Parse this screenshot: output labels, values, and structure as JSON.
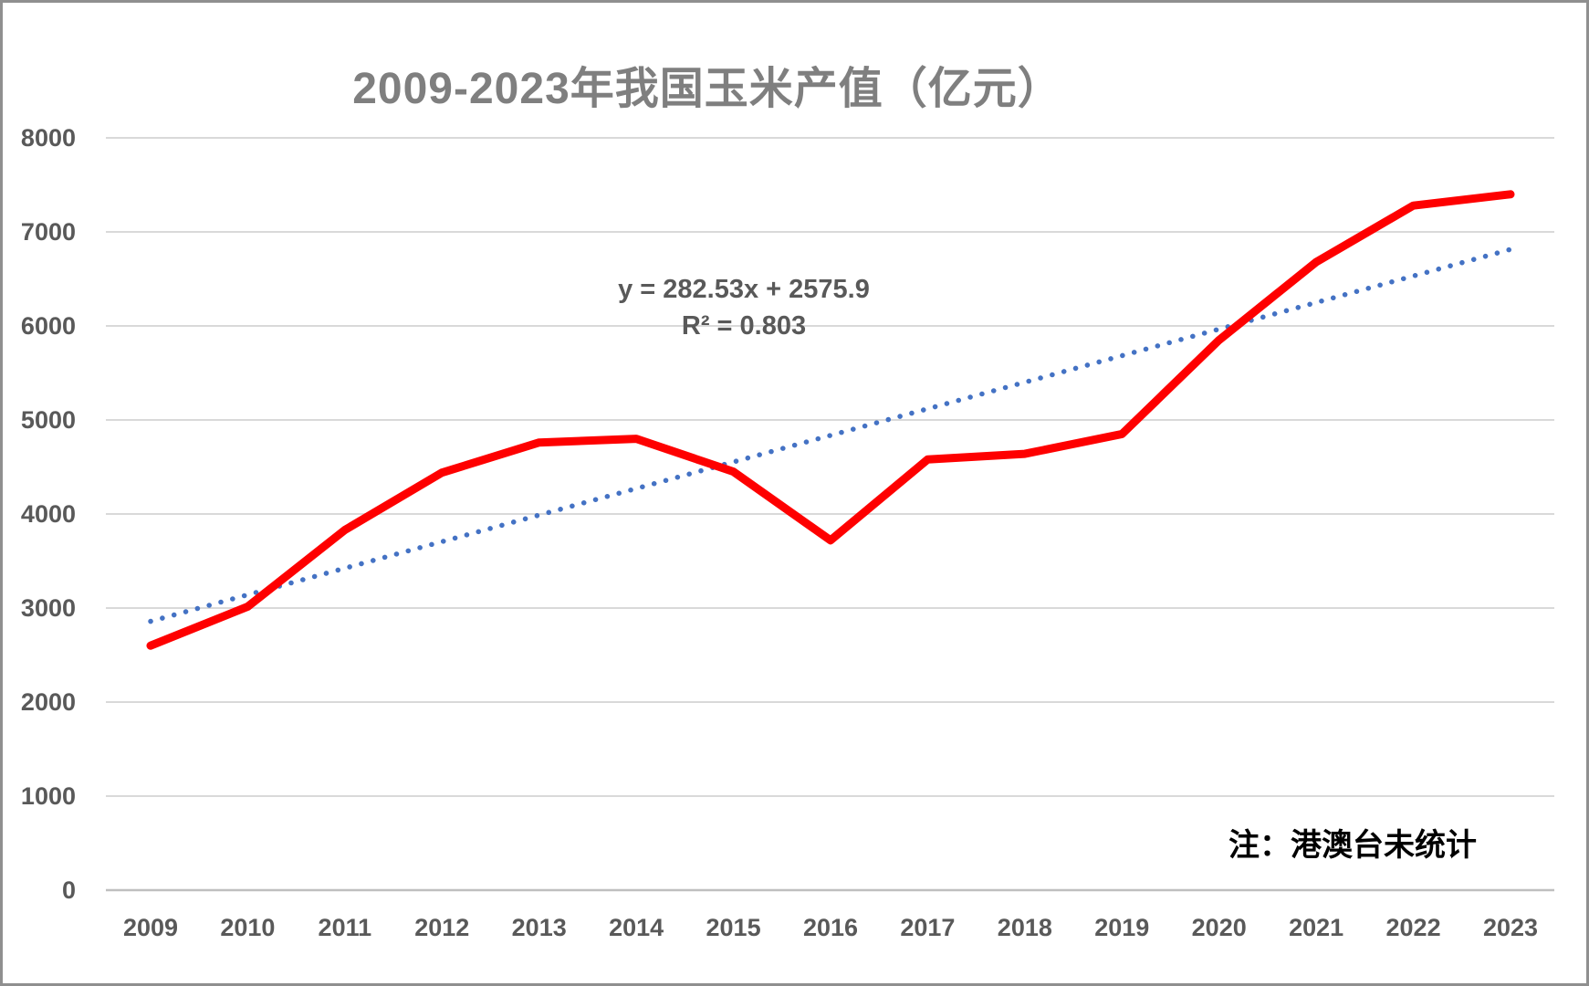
{
  "note": "注：港澳台未统计",
  "chart_data": {
    "type": "line",
    "title": "2009-2023年我国玉米产值（亿元）",
    "categories": [
      "2009",
      "2010",
      "2011",
      "2012",
      "2013",
      "2014",
      "2015",
      "2016",
      "2017",
      "2018",
      "2019",
      "2020",
      "2021",
      "2022",
      "2023"
    ],
    "series": [
      {
        "name": "玉米产值",
        "values": [
          2600,
          3015,
          3830,
          4440,
          4760,
          4800,
          4450,
          3720,
          4580,
          4640,
          4850,
          5850,
          6680,
          7280,
          7400
        ]
      }
    ],
    "trendline": {
      "slope": 282.53,
      "intercept": 2575.9,
      "equation_label": "y = 282.53x + 2575.9",
      "r2_label": "R² = 0.803",
      "style": "dotted"
    },
    "y_ticks": [
      0,
      1000,
      2000,
      3000,
      4000,
      5000,
      6000,
      7000,
      8000
    ],
    "ylim": [
      0,
      8000
    ],
    "grid": true,
    "legend": "none",
    "colors": {
      "series_line": "#fe0000",
      "trendline": "#4472c4",
      "gridline": "#d9d9d9",
      "axis_line": "#bfbfbf",
      "title_text": "#7f7f7f",
      "tick_text": "#595959",
      "note_text": "#000000"
    }
  }
}
